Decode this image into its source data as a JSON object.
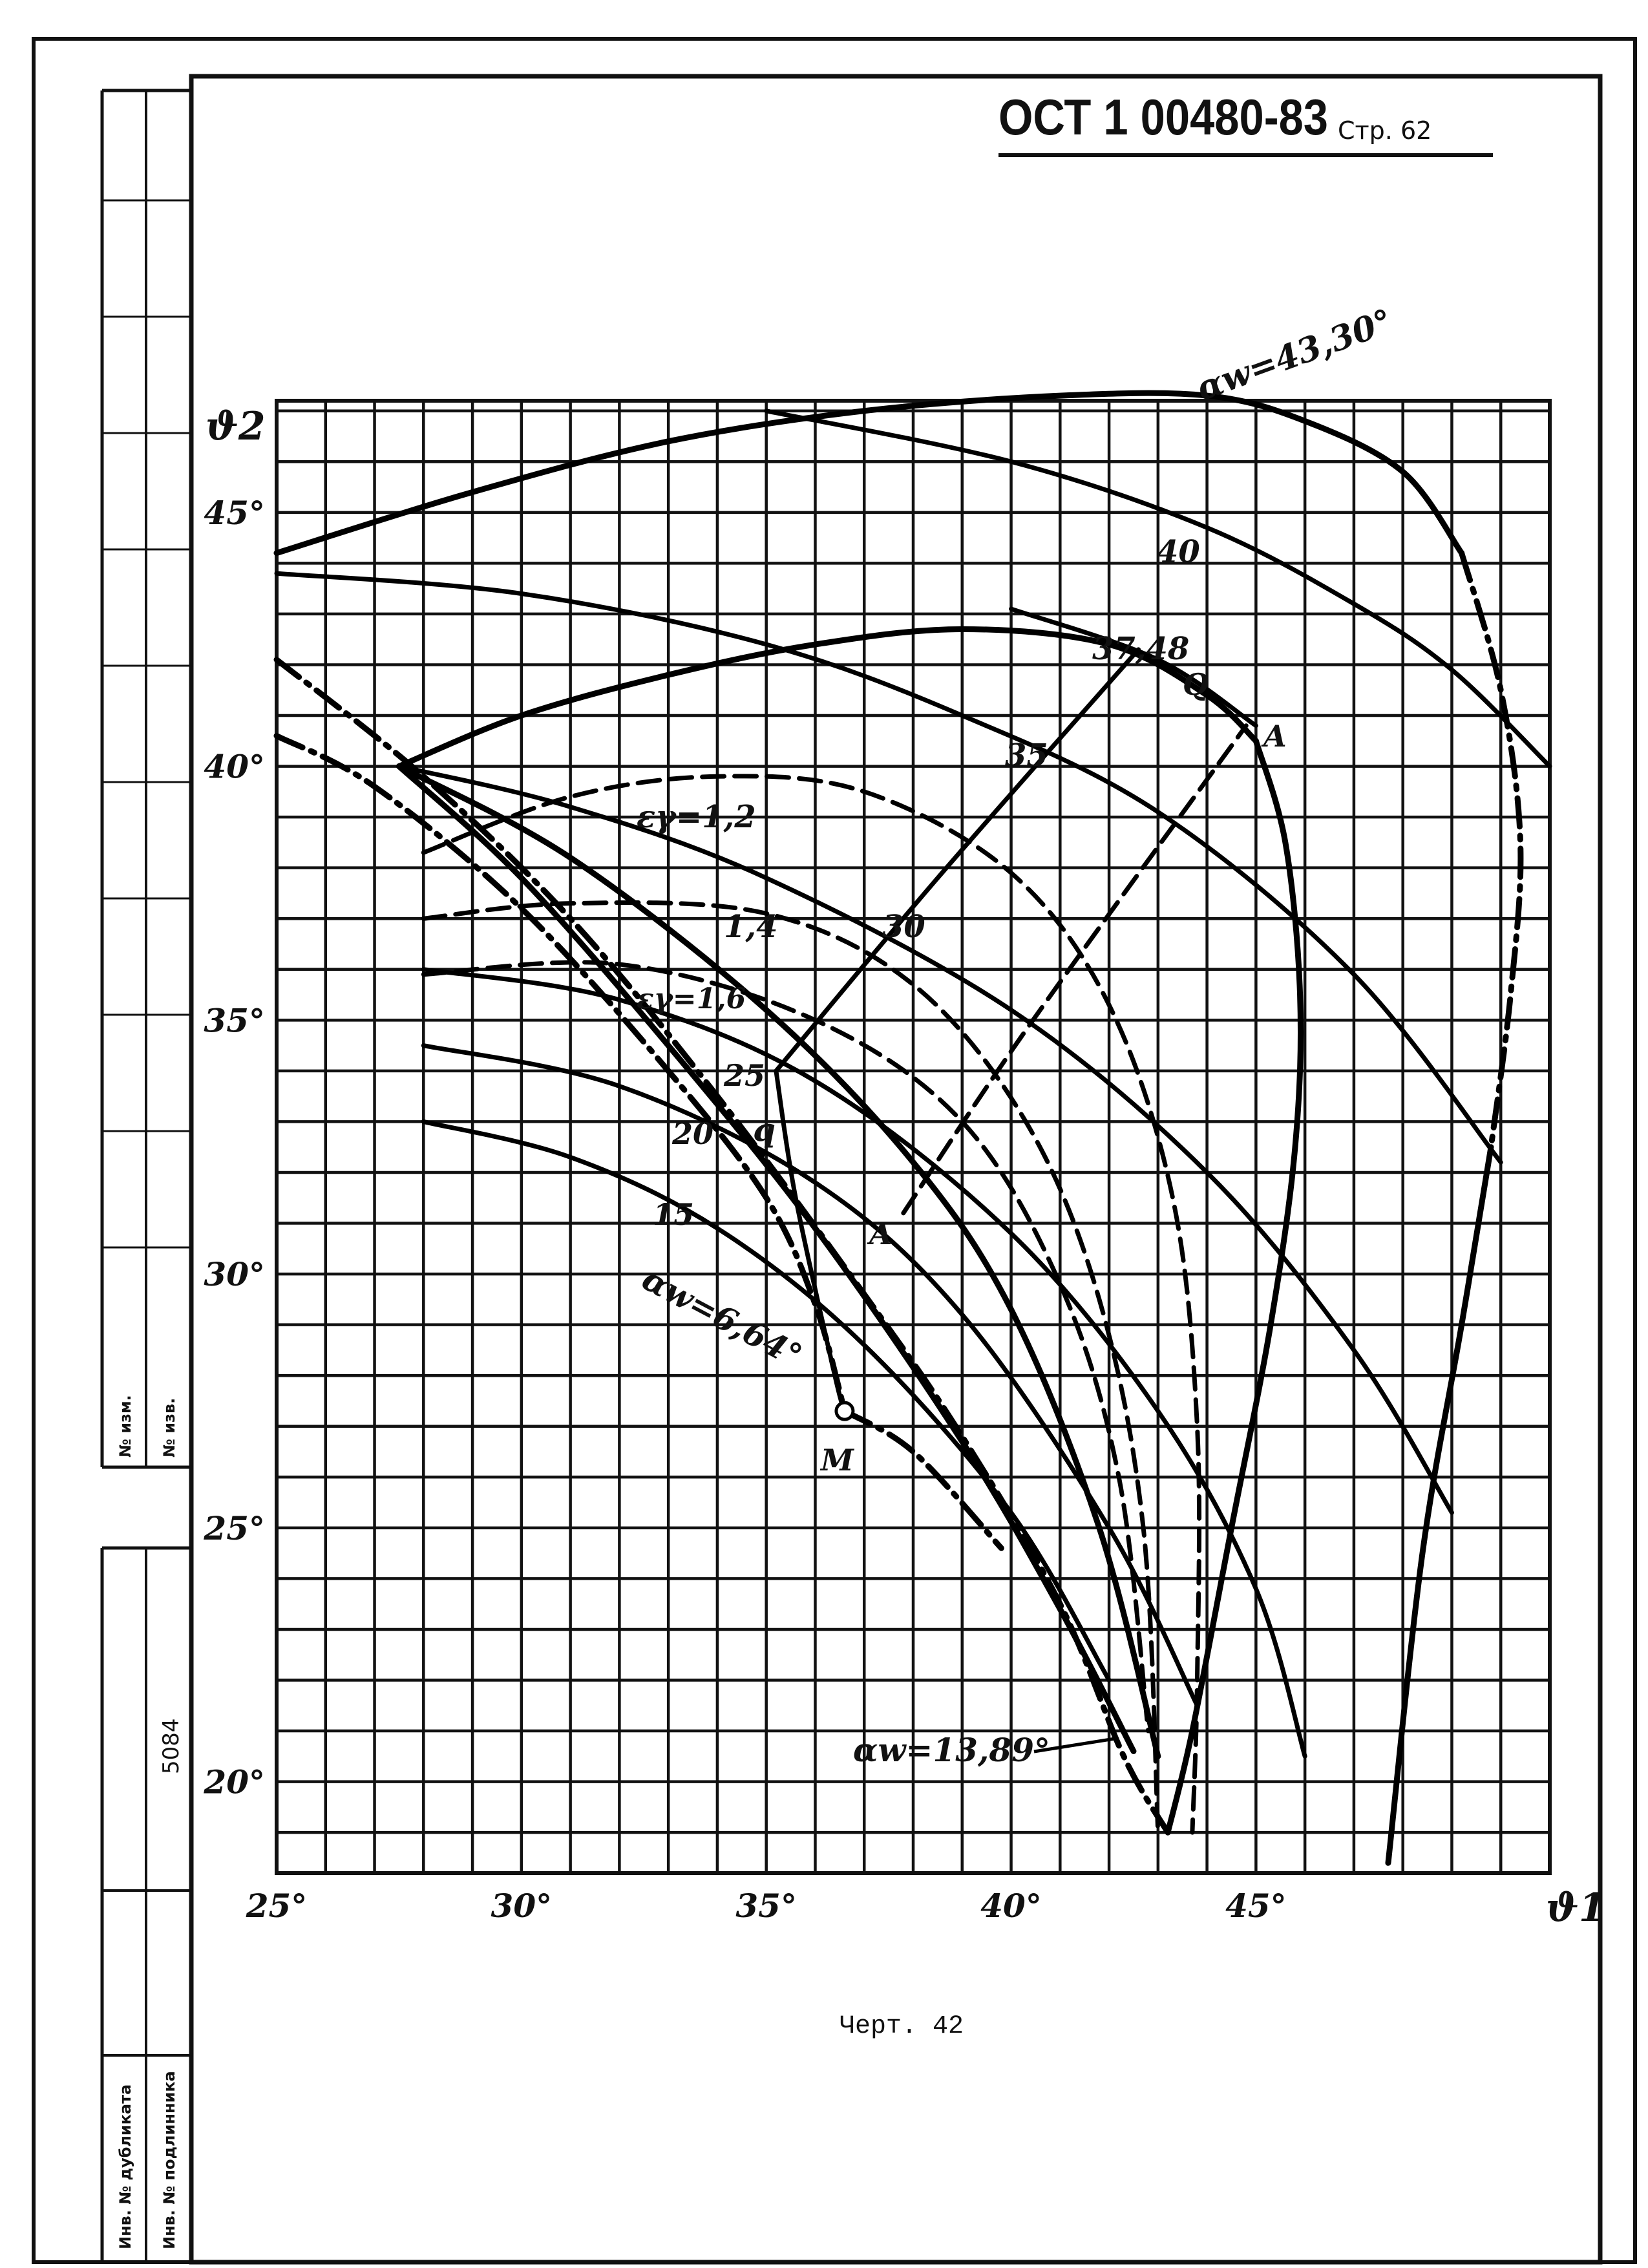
{
  "header": {
    "standard": "ОСТ 1 00480-83",
    "page_label": "Стр. 62"
  },
  "caption": "Черт. 42",
  "stamp": {
    "doc_number": "5084",
    "row1": "№ изм.",
    "row2": "№ изв.",
    "row3": "Инв. № дубликата",
    "row4": "Инв. № подлинника"
  },
  "chart_data": {
    "type": "line",
    "title": "",
    "xlabel": "ϑ1",
    "ylabel": "ϑ2",
    "xlim": [
      25,
      51
    ],
    "ylim": [
      18.2,
      47.2
    ],
    "x_ticks": [
      25,
      30,
      35,
      40,
      45
    ],
    "y_ticks": [
      20,
      25,
      30,
      35,
      40,
      45
    ],
    "x_tick_labels": [
      "25°",
      "30°",
      "35°",
      "40°",
      "45°"
    ],
    "y_tick_labels": [
      "20°",
      "25°",
      "30°",
      "35°",
      "40°",
      "45°"
    ],
    "grid": true,
    "grid_step_x": 1,
    "grid_step_y": 1,
    "annotations": {
      "aw_top": "αw=43,30°",
      "aw_mid": "αw=6,64°",
      "aw_bot": "αw=13,89°",
      "eps1": "εγ=1,2",
      "eps2": "1,4",
      "eps3": "εγ=1,6",
      "c40": "40",
      "c3748": "37,48",
      "c35": "35",
      "c30": "30",
      "c25": "25",
      "c20": "20",
      "c15": "15",
      "pQ": "Q",
      "pq": "q",
      "pA1": "A",
      "pA2": "A",
      "pM": "M"
    },
    "series": [
      {
        "id": "aw43_upper",
        "style": "solid",
        "points": [
          [
            25,
            44.2
          ],
          [
            29,
            45.4
          ],
          [
            33,
            46.4
          ],
          [
            37,
            47.0
          ],
          [
            41,
            47.3
          ],
          [
            44,
            47.3
          ],
          [
            46,
            46.8
          ],
          [
            48,
            45.8
          ],
          [
            49.2,
            44.2
          ]
        ]
      },
      {
        "id": "aw43_right",
        "style": "dashdot",
        "points": [
          [
            49.2,
            44.2
          ],
          [
            50.0,
            41.5
          ],
          [
            50.4,
            38.5
          ],
          [
            50.2,
            35.5
          ],
          [
            49.8,
            32.5
          ]
        ]
      },
      {
        "id": "aw43_lower",
        "style": "solid",
        "points": [
          [
            49.8,
            32.5
          ],
          [
            49.2,
            29.0
          ],
          [
            48.4,
            24.5
          ],
          [
            47.7,
            18.4
          ]
        ]
      },
      {
        "id": "iso40",
        "style": "solid",
        "points": [
          [
            35,
            47.0
          ],
          [
            40,
            46.0
          ],
          [
            44,
            44.7
          ],
          [
            47,
            43.2
          ],
          [
            49,
            41.9
          ],
          [
            51,
            40.0
          ]
        ]
      },
      {
        "id": "aw3748_upper",
        "style": "solid",
        "points": [
          [
            27.5,
            40.0
          ],
          [
            30,
            41.0
          ],
          [
            33,
            41.8
          ],
          [
            36,
            42.4
          ],
          [
            39,
            42.7
          ],
          [
            42,
            42.4
          ],
          [
            44,
            41.4
          ],
          [
            45,
            40.5
          ]
        ]
      },
      {
        "id": "aw3748_lower",
        "style": "solid",
        "points": [
          [
            45,
            40.5
          ],
          [
            45.6,
            38.5
          ],
          [
            45.9,
            35.5
          ],
          [
            45.8,
            32.5
          ],
          [
            45.3,
            29.0
          ],
          [
            44.5,
            25.0
          ],
          [
            43.7,
            21.0
          ],
          [
            43.2,
            19.0
          ]
        ]
      },
      {
        "id": "iso35",
        "style": "solid",
        "points": [
          [
            25,
            43.8
          ],
          [
            30,
            43.4
          ],
          [
            35,
            42.4
          ],
          [
            39,
            41.0
          ],
          [
            43,
            39.1
          ],
          [
            47,
            35.9
          ],
          [
            50,
            32.2
          ]
        ]
      },
      {
        "id": "iso3748",
        "style": "solid",
        "points": [
          [
            40,
            43.1
          ],
          [
            43,
            42.1
          ],
          [
            45,
            40.8
          ]
        ]
      },
      {
        "id": "eps12",
        "style": "dashed",
        "points": [
          [
            28,
            38.3
          ],
          [
            31,
            39.4
          ],
          [
            34,
            39.8
          ],
          [
            37,
            39.5
          ],
          [
            40,
            37.9
          ],
          [
            42,
            35.3
          ],
          [
            43.3,
            31.5
          ],
          [
            43.8,
            27.0
          ],
          [
            43.8,
            22.0
          ],
          [
            43.7,
            19.0
          ]
        ]
      },
      {
        "id": "eps14",
        "style": "dashed",
        "points": [
          [
            28,
            37.0
          ],
          [
            31,
            37.3
          ],
          [
            35,
            37.1
          ],
          [
            38,
            35.7
          ],
          [
            40.3,
            33.0
          ],
          [
            41.8,
            29.5
          ],
          [
            42.7,
            25.0
          ],
          [
            43.0,
            19.0
          ]
        ]
      },
      {
        "id": "eps16",
        "style": "dashed",
        "points": [
          [
            28,
            35.9
          ],
          [
            32,
            36.1
          ],
          [
            36,
            35.0
          ],
          [
            39,
            33.0
          ],
          [
            41,
            29.8
          ],
          [
            42.2,
            26.0
          ],
          [
            42.8,
            21.0
          ]
        ]
      },
      {
        "id": "iso30",
        "style": "solid",
        "points": [
          [
            27.5,
            40.0
          ],
          [
            31,
            39.2
          ],
          [
            35,
            37.8
          ],
          [
            40,
            35.2
          ],
          [
            44,
            32.0
          ],
          [
            47,
            28.5
          ],
          [
            49,
            25.3
          ]
        ]
      },
      {
        "id": "iso25",
        "style": "solid",
        "points": [
          [
            28,
            36.0
          ],
          [
            32,
            35.4
          ],
          [
            36,
            33.8
          ],
          [
            40,
            30.8
          ],
          [
            43,
            27.3
          ],
          [
            45,
            23.8
          ],
          [
            46,
            20.5
          ]
        ]
      },
      {
        "id": "iso20",
        "style": "solid",
        "points": [
          [
            28,
            34.5
          ],
          [
            32,
            33.7
          ],
          [
            36,
            31.8
          ],
          [
            39,
            29.2
          ],
          [
            42,
            25.0
          ],
          [
            43.8,
            21.5
          ]
        ]
      },
      {
        "id": "iso15",
        "style": "solid",
        "points": [
          [
            28,
            33.0
          ],
          [
            31,
            32.3
          ],
          [
            34,
            30.9
          ],
          [
            37,
            28.6
          ],
          [
            40,
            25.3
          ],
          [
            42,
            22.0
          ]
        ]
      },
      {
        "id": "aw664",
        "style": "dashdot",
        "points": [
          [
            25,
            40.6
          ],
          [
            27,
            39.6
          ],
          [
            30,
            37.2
          ],
          [
            33,
            34.0
          ],
          [
            35,
            31.5
          ],
          [
            36,
            29.4
          ],
          [
            36.6,
            27.3
          ]
        ]
      },
      {
        "id": "aw664_tail",
        "style": "dashdot",
        "points": [
          [
            36.6,
            27.3
          ],
          [
            38,
            26.5
          ],
          [
            39.8,
            24.6
          ]
        ]
      },
      {
        "id": "aw1389_a",
        "style": "dashdot",
        "points": [
          [
            25,
            42.1
          ],
          [
            28,
            39.8
          ],
          [
            31,
            37.0
          ],
          [
            34,
            33.5
          ],
          [
            37,
            29.6
          ],
          [
            39,
            26.8
          ],
          [
            41,
            23.5
          ],
          [
            42.3,
            20.5
          ],
          [
            43.2,
            19.0
          ]
        ]
      },
      {
        "id": "aw1389_b",
        "style": "solid",
        "points": [
          [
            27.5,
            40.0
          ],
          [
            30,
            37.8
          ],
          [
            33,
            34.5
          ],
          [
            36,
            30.9
          ],
          [
            39,
            26.7
          ],
          [
            41,
            23.4
          ],
          [
            42.5,
            20.6
          ]
        ]
      },
      {
        "id": "aw1389_c",
        "style": "solid",
        "points": [
          [
            27.5,
            40.0
          ],
          [
            31,
            38.2
          ],
          [
            35,
            35.2
          ],
          [
            38,
            32.2
          ],
          [
            40,
            29.3
          ],
          [
            41.8,
            25.0
          ],
          [
            43,
            20.5
          ]
        ]
      },
      {
        "id": "line_Qq",
        "style": "solid",
        "points": [
          [
            35.2,
            34.0
          ],
          [
            38.5,
            37.8
          ],
          [
            42.6,
            42.3
          ]
        ]
      },
      {
        "id": "line_AA",
        "style": "dashed",
        "points": [
          [
            37.8,
            31.2
          ],
          [
            40.3,
            34.8
          ],
          [
            44.8,
            40.8
          ]
        ]
      },
      {
        "id": "line_qM",
        "style": "solid",
        "points": [
          [
            35.2,
            34.0
          ],
          [
            35.6,
            31.5
          ],
          [
            36.4,
            28.0
          ],
          [
            36.6,
            27.3
          ]
        ]
      }
    ]
  }
}
